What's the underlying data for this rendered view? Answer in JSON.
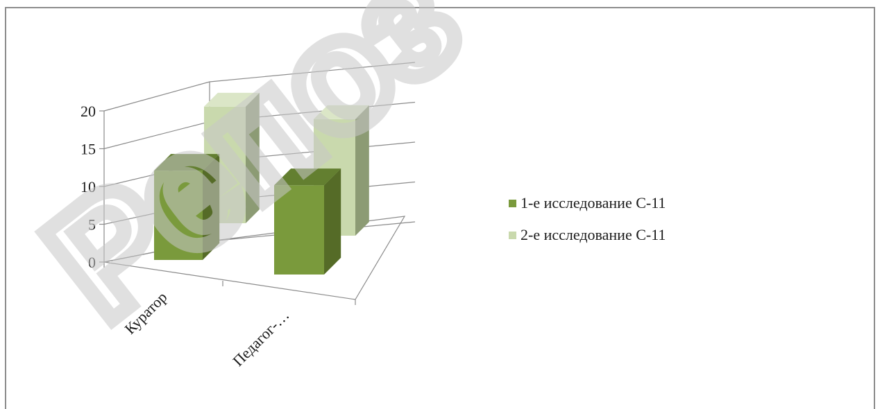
{
  "chart_data": {
    "type": "bar",
    "categories": [
      "Куратор",
      "Педагог-…"
    ],
    "series": [
      {
        "name": "1-е исследование С-11",
        "values": [
          13,
          13
        ]
      },
      {
        "name": "2-е исследование С-11",
        "values": [
          17,
          17
        ]
      }
    ],
    "ylim": [
      0,
      20
    ],
    "yticks": [
      0,
      5,
      10,
      15,
      20
    ],
    "grid": true,
    "legend_position": "right",
    "colors": {
      "series1_front": "#7a9a3c",
      "series1_side": "#556b27",
      "series1_top": "#637f30",
      "series2_front": "#c9d9ad",
      "series2_side": "#8c9b74",
      "series2_top": "#dbe6c7"
    }
  },
  "watermark": {
    "text": "Репоз"
  }
}
